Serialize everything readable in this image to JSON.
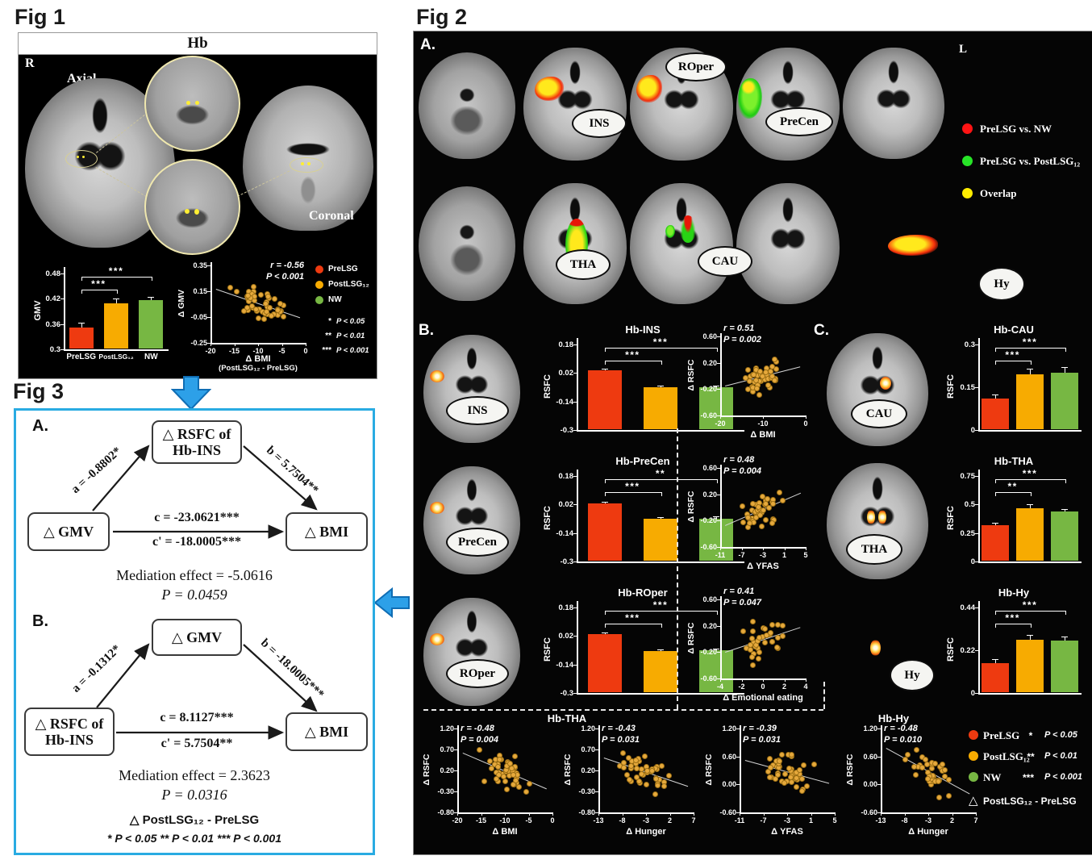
{
  "colors": {
    "red": "#ee3a10",
    "yellow": "#f7ab01",
    "green": "#77b743",
    "dot": "#e6a93c",
    "legend_red": "#ff1414",
    "legend_green": "#27e427",
    "legend_yellow": "#ffec00",
    "fig3_border": "#29abe2",
    "arrow_blue": "#2da0e8",
    "trend": "#d5d5d5"
  },
  "fig1": {
    "label": "Fig 1",
    "header": "Hb",
    "r_marker": "R",
    "axial": "Axial",
    "coronal": "Coronal",
    "bars": {
      "type": "bar",
      "ylabel": "GMV",
      "yticks": [
        "0.48",
        "0.42",
        "0.36",
        "0.3"
      ],
      "ylim": [
        0.3,
        0.48
      ],
      "categories": [
        "PreLSG",
        "PostLSG₁₂",
        "NW"
      ],
      "values": [
        0.352,
        0.41,
        0.417
      ],
      "errors": [
        0.012,
        0.01,
        0.008
      ],
      "sig_upper": "***",
      "sig_lower": "***"
    },
    "scatter": {
      "type": "scatter",
      "r_label": "r = -0.56",
      "p_label": "P < 0.001",
      "r": -0.56,
      "n": 48,
      "ylabel": "Δ GMV",
      "yticks": [
        "0.35",
        "0.15",
        "-0.05",
        "-0.25"
      ],
      "xticks": [
        "-20",
        "-15",
        "-10",
        "-5",
        "0"
      ],
      "xlabel": "Δ BMI",
      "xlabel2": "(PostLSG₁₂ - PreLSG)"
    },
    "legend": {
      "groups": [
        {
          "label": "PreLSG",
          "color_key": "red"
        },
        {
          "label": "PostLSG₁₂",
          "color_key": "yellow"
        },
        {
          "label": "NW",
          "color_key": "green"
        }
      ],
      "sig": [
        {
          "stars": "*",
          "label": "P < 0.05"
        },
        {
          "stars": "**",
          "label": "P < 0.01"
        },
        {
          "stars": "***",
          "label": "P < 0.001"
        }
      ]
    }
  },
  "fig2": {
    "label": "Fig 2",
    "a": "A.",
    "b": "B.",
    "c": "C.",
    "l_marker": "L",
    "regionsRow1": [
      "INS",
      "ROper",
      "PreCen"
    ],
    "regionsRow2": [
      "THA",
      "CAU",
      "Hy"
    ],
    "legendA": [
      {
        "label": "PreLSG vs. NW",
        "color_key": "legend_red"
      },
      {
        "label": "PreLSG vs. PostLSG₁₂",
        "color_key": "legend_green"
      },
      {
        "label": "Overlap",
        "color_key": "legend_yellow"
      }
    ],
    "b_rows": [
      {
        "region": "INS",
        "chart": {
          "type": "bar",
          "title": "Hb-INS",
          "ylabel": "RSFC",
          "yticks": [
            "0.18",
            "0.02",
            "-0.14",
            "-0.3"
          ],
          "ylim": [
            -0.3,
            0.18
          ],
          "values": [
            0.033,
            -0.062,
            -0.06
          ],
          "errors": [
            0.012,
            0.012,
            0.01
          ],
          "sig_upper": "***",
          "sig_lower": "***"
        },
        "scatter": {
          "type": "scatter",
          "r_label": "r = 0.51",
          "p_label": "P = 0.002",
          "r": 0.51,
          "n": 46,
          "ylabel": "Δ RSFC",
          "yticks": [
            "0.60",
            "0.20",
            "-0.20",
            "-0.60"
          ],
          "xticks": [
            "-20",
            "-10",
            "0"
          ],
          "xlabel": "Δ BMI"
        }
      },
      {
        "region": "PreCen",
        "chart": {
          "type": "bar",
          "title": "Hb-PreCen",
          "ylabel": "RSFC",
          "yticks": [
            "0.18",
            "0.02",
            "-0.14",
            "-0.3"
          ],
          "ylim": [
            -0.3,
            0.18
          ],
          "values": [
            0.025,
            -0.062,
            -0.058
          ],
          "errors": [
            0.012,
            0.012,
            0.01
          ],
          "sig_upper": "**",
          "sig_lower": "***"
        },
        "scatter": {
          "type": "scatter",
          "r_label": "r = 0.48",
          "p_label": "P = 0.004",
          "r": 0.48,
          "n": 42,
          "ylabel": "Δ RSFC",
          "yticks": [
            "0.60",
            "0.20",
            "-0.20",
            "-0.60"
          ],
          "xticks": [
            "-11",
            "-7",
            "-3",
            "1",
            "5"
          ],
          "xlabel": "Δ YFAS"
        }
      },
      {
        "region": "ROper",
        "chart": {
          "type": "bar",
          "title": "Hb-ROper",
          "ylabel": "RSFC",
          "yticks": [
            "0.18",
            "0.02",
            "-0.14",
            "-0.3"
          ],
          "ylim": [
            -0.3,
            0.18
          ],
          "values": [
            0.03,
            -0.063,
            -0.058
          ],
          "errors": [
            0.01,
            0.008,
            0.008
          ],
          "sig_upper": "***",
          "sig_lower": "***"
        },
        "scatter": {
          "type": "scatter",
          "r_label": "r = 0.41",
          "p_label": "P = 0.047",
          "r": 0.41,
          "n": 34,
          "ylabel": "Δ RSFC",
          "yticks": [
            "0.60",
            "0.20",
            "-0.20",
            "-0.60"
          ],
          "xticks": [
            "-4",
            "-2",
            "0",
            "2",
            "4"
          ],
          "xlabel": "Δ Emotional eating"
        }
      }
    ],
    "c_rows": [
      {
        "region": "CAU",
        "chart": {
          "type": "bar",
          "title": "Hb-CAU",
          "ylabel": "RSFC",
          "yticks": [
            "0.3",
            "0.15",
            "0"
          ],
          "ylim": [
            0,
            0.3
          ],
          "values": [
            0.11,
            0.195,
            0.2
          ],
          "errors": [
            0.015,
            0.02,
            0.02
          ],
          "sig_upper": "***",
          "sig_lower": "***"
        }
      },
      {
        "region": "THA",
        "chart": {
          "type": "bar",
          "title": "Hb-THA",
          "ylabel": "RSFC",
          "yticks": [
            "0.75",
            "0.5",
            "0.25",
            "0"
          ],
          "ylim": [
            0,
            0.75
          ],
          "values": [
            0.32,
            0.47,
            0.44
          ],
          "errors": [
            0.02,
            0.03,
            0.02
          ],
          "sig_upper": "***",
          "sig_lower": "**"
        }
      },
      {
        "region": "Hy",
        "chart": {
          "type": "bar",
          "title": "Hb-Hy",
          "ylabel": "RSFC",
          "yticks": [
            "0.44",
            "0.22",
            "0"
          ],
          "ylim": [
            0,
            0.44
          ],
          "values": [
            0.155,
            0.275,
            0.27
          ],
          "errors": [
            0.02,
            0.025,
            0.02
          ],
          "sig_upper": "***",
          "sig_lower": "***"
        }
      }
    ],
    "bottom": {
      "group_titles": [
        "Hb-THA",
        "Hb-Hy"
      ],
      "scatters": [
        {
          "type": "scatter",
          "r_label": "r = -0.48",
          "p_label": "P = 0.004",
          "r": -0.48,
          "n": 46,
          "ylabel": "Δ RSFC",
          "yticks": [
            "1.20",
            "0.70",
            "0.20",
            "-0.30",
            "-0.80"
          ],
          "xticks": [
            "-20",
            "-15",
            "-10",
            "-5",
            "0"
          ],
          "xlabel": "Δ BMI"
        },
        {
          "type": "scatter",
          "r_label": "r = -0.43",
          "p_label": "P = 0.031",
          "r": -0.43,
          "n": 44,
          "ylabel": "Δ RSFC",
          "yticks": [
            "1.20",
            "0.70",
            "0.20",
            "-0.30",
            "-0.80"
          ],
          "xticks": [
            "-13",
            "-8",
            "-3",
            "2",
            "7"
          ],
          "xlabel": "Δ Hunger"
        },
        {
          "type": "scatter",
          "r_label": "r = -0.39",
          "p_label": "P = 0.031",
          "r": -0.39,
          "n": 46,
          "ylabel": "Δ RSFC",
          "yticks": [
            "1.20",
            "0.60",
            "0.00",
            "-0.60"
          ],
          "xticks": [
            "-11",
            "-7",
            "-3",
            "1",
            "5"
          ],
          "xlabel": "Δ YFAS"
        },
        {
          "type": "scatter",
          "r_label": "r = -0.48",
          "p_label": "P = 0.010",
          "r": -0.48,
          "n": 38,
          "ylabel": "Δ RSFC",
          "yticks": [
            "1.20",
            "0.60",
            "0.00",
            "-0.60"
          ],
          "xticks": [
            "-13",
            "-8",
            "-3",
            "2",
            "7"
          ],
          "xlabel": "Δ Hunger"
        }
      ],
      "legend": {
        "groups": [
          {
            "label": "PreLSG",
            "color_key": "red"
          },
          {
            "label": "PostLSG₁₂",
            "color_key": "yellow"
          },
          {
            "label": "NW",
            "color_key": "green"
          }
        ],
        "sig": [
          {
            "stars": "*",
            "label": "P < 0.05"
          },
          {
            "stars": "**",
            "label": "P < 0.01"
          },
          {
            "stars": "***",
            "label": "P < 0.001"
          }
        ],
        "delta_symbol": "△",
        "delta_label": "PostLSG₁₂ - PreLSG"
      }
    }
  },
  "fig3": {
    "label": "Fig 3",
    "a": "A.",
    "b": "B.",
    "panelA": {
      "top_box": "△ RSFC of Hb-INS",
      "left_box": "△ GMV",
      "right_box": "△ BMI",
      "path_a": "a = -0.8802*",
      "path_b": "b = 5.7504**",
      "path_c": "c = -23.0621***",
      "path_cp": "c' = -18.0005***",
      "effect": "Mediation effect = -5.0616",
      "p": "P = 0.0459"
    },
    "panelB": {
      "top_box": "△ GMV",
      "left_box": "△ RSFC of Hb-INS",
      "right_box": "△ BMI",
      "path_a": "a = -0.1312*",
      "path_b": "b = -18.0005***",
      "path_c": "c = 8.1127***",
      "path_cp": "c' = 5.7504**",
      "effect": "Mediation effect = 2.3623",
      "p": "P = 0.0316"
    },
    "footer_delta": "△  PostLSG₁₂ - PreLSG",
    "footer_sig": "*  P < 0.05    **  P < 0.01    ***  P < 0.001"
  }
}
